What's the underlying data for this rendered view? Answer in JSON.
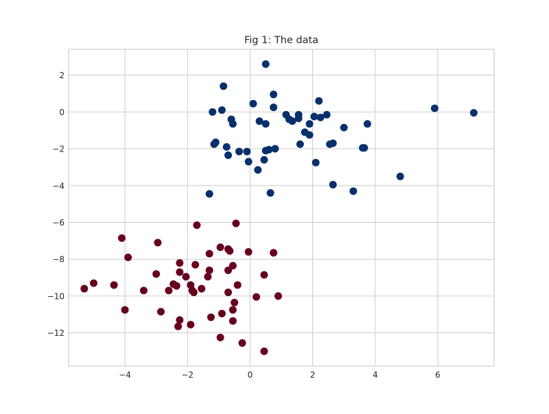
{
  "chart_data": {
    "type": "scatter",
    "title": "Fig 1: The data",
    "xlabel": "",
    "ylabel": "",
    "xlim": [
      -5.8,
      7.8
    ],
    "ylim": [
      -13.8,
      3.4
    ],
    "x_ticks": [
      -4,
      -2,
      0,
      2,
      4,
      6
    ],
    "y_ticks": [
      2,
      0,
      -2,
      -4,
      -6,
      -8,
      -10,
      -12
    ],
    "x_tick_labels": [
      "−4",
      "−2",
      "0",
      "2",
      "4",
      "6"
    ],
    "y_tick_labels": [
      "2",
      "0",
      "−2",
      "−4",
      "−6",
      "−8",
      "−10",
      "−12"
    ],
    "grid": true,
    "legend": "none",
    "series": [
      {
        "color": "#08306b",
        "points": [
          [
            0.5,
            2.6
          ],
          [
            -0.85,
            1.4
          ],
          [
            0.75,
            0.95
          ],
          [
            2.2,
            0.6
          ],
          [
            0.1,
            0.45
          ],
          [
            0.75,
            0.25
          ],
          [
            -0.9,
            0.1
          ],
          [
            -1.2,
            0.0
          ],
          [
            5.9,
            0.2
          ],
          [
            7.15,
            -0.05
          ],
          [
            1.15,
            -0.15
          ],
          [
            1.55,
            -0.15
          ],
          [
            2.05,
            -0.25
          ],
          [
            2.25,
            -0.3
          ],
          [
            2.45,
            -0.15
          ],
          [
            1.25,
            -0.4
          ],
          [
            1.35,
            -0.5
          ],
          [
            1.55,
            -0.35
          ],
          [
            -0.6,
            -0.4
          ],
          [
            -0.55,
            -0.65
          ],
          [
            0.3,
            -0.5
          ],
          [
            0.5,
            -0.65
          ],
          [
            1.9,
            -0.65
          ],
          [
            3.75,
            -0.65
          ],
          [
            3.0,
            -0.85
          ],
          [
            1.75,
            -1.1
          ],
          [
            1.9,
            -1.25
          ],
          [
            -1.15,
            -1.75
          ],
          [
            -1.1,
            -1.65
          ],
          [
            1.6,
            -1.75
          ],
          [
            2.55,
            -1.75
          ],
          [
            2.65,
            -1.7
          ],
          [
            3.6,
            -1.95
          ],
          [
            3.65,
            -1.95
          ],
          [
            -0.75,
            -1.9
          ],
          [
            -0.35,
            -2.15
          ],
          [
            -0.1,
            -2.15
          ],
          [
            0.5,
            -2.1
          ],
          [
            0.6,
            -2.05
          ],
          [
            0.8,
            -2.0
          ],
          [
            -0.7,
            -2.35
          ],
          [
            0.45,
            -2.6
          ],
          [
            -0.05,
            -2.7
          ],
          [
            2.1,
            -2.75
          ],
          [
            0.25,
            -3.15
          ],
          [
            2.65,
            -3.95
          ],
          [
            3.3,
            -4.3
          ],
          [
            4.8,
            -3.5
          ],
          [
            -1.3,
            -4.45
          ],
          [
            0.65,
            -4.4
          ]
        ]
      },
      {
        "color": "#67001f",
        "points": [
          [
            -1.7,
            -6.15
          ],
          [
            -0.45,
            -6.05
          ],
          [
            -4.1,
            -6.85
          ],
          [
            -2.95,
            -7.1
          ],
          [
            -0.95,
            -7.35
          ],
          [
            -0.7,
            -7.45
          ],
          [
            -0.65,
            -7.55
          ],
          [
            -0.05,
            -7.6
          ],
          [
            0.75,
            -7.65
          ],
          [
            -1.3,
            -7.7
          ],
          [
            -3.9,
            -7.9
          ],
          [
            -1.75,
            -8.3
          ],
          [
            -2.25,
            -8.2
          ],
          [
            -0.55,
            -8.35
          ],
          [
            -1.3,
            -8.6
          ],
          [
            -0.7,
            -8.6
          ],
          [
            -2.25,
            -8.7
          ],
          [
            -3.0,
            -8.8
          ],
          [
            0.45,
            -8.85
          ],
          [
            -2.05,
            -8.95
          ],
          [
            -1.35,
            -8.95
          ],
          [
            -5.0,
            -9.3
          ],
          [
            -4.35,
            -9.4
          ],
          [
            -2.45,
            -9.35
          ],
          [
            -2.35,
            -9.45
          ],
          [
            -1.9,
            -9.4
          ],
          [
            -0.4,
            -9.4
          ],
          [
            -5.3,
            -9.6
          ],
          [
            -3.4,
            -9.7
          ],
          [
            -2.6,
            -9.7
          ],
          [
            -1.85,
            -9.7
          ],
          [
            -1.55,
            -9.6
          ],
          [
            -1.8,
            -9.8
          ],
          [
            -0.7,
            -9.8
          ],
          [
            0.2,
            -10.05
          ],
          [
            0.9,
            -10.0
          ],
          [
            -0.5,
            -10.35
          ],
          [
            -4.0,
            -10.75
          ],
          [
            -0.55,
            -10.75
          ],
          [
            -2.85,
            -10.85
          ],
          [
            -0.9,
            -10.95
          ],
          [
            -1.25,
            -11.15
          ],
          [
            -2.25,
            -11.3
          ],
          [
            -0.55,
            -11.35
          ],
          [
            -1.9,
            -11.55
          ],
          [
            -2.3,
            -11.65
          ],
          [
            -0.95,
            -12.25
          ],
          [
            -0.25,
            -12.55
          ],
          [
            0.45,
            -13.0
          ]
        ]
      }
    ]
  }
}
